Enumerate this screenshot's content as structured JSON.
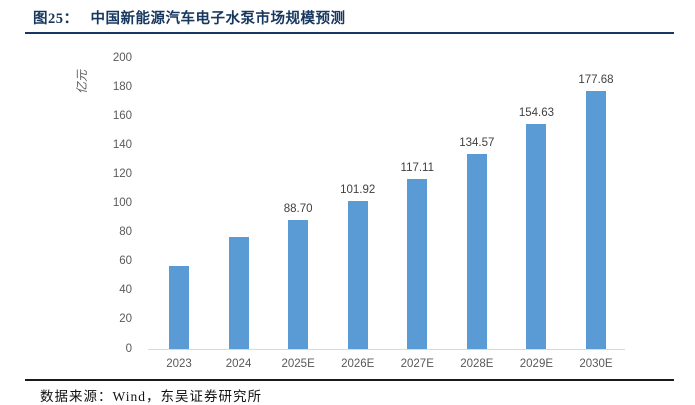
{
  "header": {
    "figure_label": "图25：",
    "title": "中国新能源汽车电子水泵市场规模预测"
  },
  "footer": {
    "source": "数据来源：Wind，东吴证券研究所"
  },
  "colors": {
    "title_navy": "#17375E",
    "bar_blue": "#5B9BD5",
    "axis_line_gray": "#D9D9D9",
    "tick_text_gray": "#595959",
    "bar_label_gray": "#404040"
  },
  "chart_data": {
    "type": "bar",
    "title": "中国新能源汽车电子水泵市场规模预测",
    "xlabel": "",
    "ylabel": "亿元",
    "categories": [
      "2023",
      "2024",
      "2025E",
      "2026E",
      "2027E",
      "2028E",
      "2029E",
      "2030E"
    ],
    "values": [
      57,
      77.4,
      88.7,
      101.92,
      117.11,
      134.57,
      154.63,
      177.68
    ],
    "bar_labels": [
      "",
      "",
      "88.70",
      "101.92",
      "117.11",
      "134.57",
      "154.63",
      "177.68"
    ],
    "ylim": [
      0,
      200
    ],
    "y_ticks": [
      0,
      20,
      40,
      60,
      80,
      100,
      120,
      140,
      160,
      180,
      200
    ],
    "bar_color": "#5B9BD5",
    "grid": false,
    "legend": false
  }
}
